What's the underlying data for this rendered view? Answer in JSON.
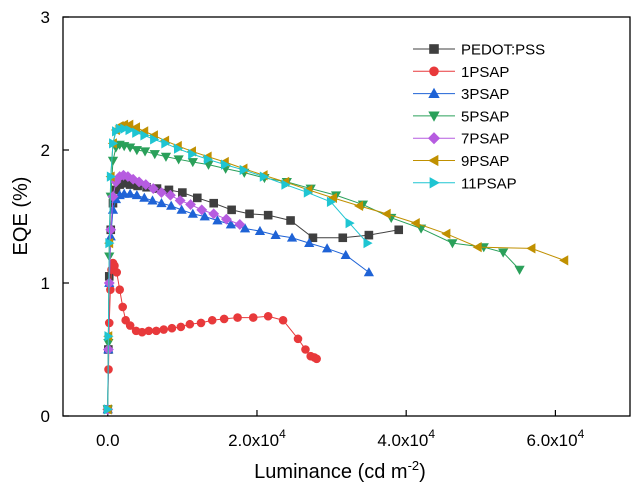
{
  "chart_data": {
    "type": "line",
    "xlabel": "Luminance (cd m",
    "xlabel_sup": "-2",
    "xlabel_close": ")",
    "ylabel": "EQE (%)",
    "xlim": [
      -6000,
      70000
    ],
    "ylim": [
      0,
      3
    ],
    "grid": false,
    "legend_position": "top-right",
    "x_ticks": [
      {
        "value": 0,
        "mantissa": "0.0",
        "exp": ""
      },
      {
        "value": 20000,
        "mantissa": "2.0x10",
        "exp": "4"
      },
      {
        "value": 40000,
        "mantissa": "4.0x10",
        "exp": "4"
      },
      {
        "value": 60000,
        "mantissa": "6.0x10",
        "exp": "4"
      }
    ],
    "y_ticks": [
      {
        "value": 0,
        "label": "0"
      },
      {
        "value": 1,
        "label": "1"
      },
      {
        "value": 2,
        "label": "2"
      },
      {
        "value": 3,
        "label": "3"
      }
    ],
    "series": [
      {
        "name": "PEDOT:PSS",
        "color": "#3f3f3f",
        "marker": "square",
        "x": [
          0,
          80,
          200,
          400,
          700,
          1100,
          1600,
          2200,
          3000,
          4000,
          5200,
          6600,
          8200,
          10000,
          12000,
          14200,
          16600,
          19000,
          21500,
          24500,
          27500,
          31500,
          35000,
          39000
        ],
        "y": [
          0.05,
          0.5,
          1.05,
          1.4,
          1.6,
          1.7,
          1.74,
          1.75,
          1.74,
          1.73,
          1.72,
          1.71,
          1.7,
          1.68,
          1.64,
          1.6,
          1.55,
          1.52,
          1.51,
          1.47,
          1.34,
          1.34,
          1.36,
          1.4
        ]
      },
      {
        "name": "1PSAP",
        "color": "#e8393b",
        "marker": "circle",
        "x": [
          0,
          100,
          200,
          350,
          500,
          700,
          900,
          1200,
          1600,
          2000,
          2400,
          3000,
          3800,
          4600,
          5500,
          6500,
          7500,
          8600,
          9800,
          11000,
          12500,
          14000,
          15600,
          17400,
          19500,
          21500,
          23500,
          25500,
          26500,
          27200,
          27700,
          28000
        ],
        "y": [
          0.05,
          0.35,
          0.7,
          0.95,
          1.1,
          1.15,
          1.13,
          1.08,
          0.95,
          0.82,
          0.72,
          0.68,
          0.64,
          0.63,
          0.64,
          0.64,
          0.65,
          0.66,
          0.67,
          0.69,
          0.7,
          0.72,
          0.73,
          0.74,
          0.74,
          0.75,
          0.72,
          0.58,
          0.5,
          0.45,
          0.44,
          0.43
        ]
      },
      {
        "name": "3PSAP",
        "color": "#1f63d6",
        "marker": "triangle-up",
        "x": [
          0,
          80,
          200,
          400,
          700,
          1100,
          1600,
          2200,
          3000,
          3900,
          4900,
          6000,
          7200,
          8500,
          9900,
          11400,
          13000,
          14700,
          16500,
          18400,
          20400,
          22500,
          24700,
          27000,
          29400,
          31900,
          35000
        ],
        "y": [
          0.05,
          0.5,
          1.0,
          1.35,
          1.55,
          1.63,
          1.66,
          1.67,
          1.67,
          1.66,
          1.64,
          1.62,
          1.6,
          1.58,
          1.55,
          1.52,
          1.5,
          1.47,
          1.44,
          1.41,
          1.39,
          1.36,
          1.34,
          1.3,
          1.26,
          1.21,
          1.08
        ]
      },
      {
        "name": "5PSAP",
        "color": "#2aa05a",
        "marker": "triangle-down",
        "x": [
          0,
          80,
          200,
          400,
          700,
          1100,
          1600,
          2200,
          3000,
          3900,
          5000,
          6300,
          7800,
          9500,
          11400,
          13500,
          15800,
          18300,
          21000,
          24000,
          27200,
          30600,
          34200,
          38000,
          42000,
          46200,
          50400,
          53000,
          55200
        ],
        "y": [
          0.05,
          0.55,
          1.2,
          1.65,
          1.92,
          2.02,
          2.04,
          2.03,
          2.02,
          2.0,
          1.99,
          1.97,
          1.95,
          1.93,
          1.91,
          1.89,
          1.86,
          1.83,
          1.79,
          1.76,
          1.71,
          1.66,
          1.59,
          1.49,
          1.41,
          1.3,
          1.27,
          1.23,
          1.1
        ]
      },
      {
        "name": "7PSAP",
        "color": "#b65ce0",
        "marker": "diamond",
        "x": [
          0,
          80,
          200,
          400,
          700,
          1100,
          1600,
          2100,
          2700,
          3400,
          4200,
          5100,
          6100,
          7200,
          8400,
          9700,
          11100,
          12600,
          14200,
          15900,
          17700
        ],
        "y": [
          0.05,
          0.5,
          1.0,
          1.4,
          1.65,
          1.76,
          1.8,
          1.81,
          1.8,
          1.78,
          1.76,
          1.74,
          1.71,
          1.68,
          1.66,
          1.62,
          1.59,
          1.55,
          1.52,
          1.48,
          1.44
        ]
      },
      {
        "name": "9PSAP",
        "color": "#c09000",
        "marker": "triangle-left",
        "x": [
          0,
          80,
          200,
          400,
          700,
          1100,
          1600,
          2200,
          2900,
          3800,
          4900,
          6200,
          7700,
          9400,
          11300,
          13400,
          15700,
          18200,
          20900,
          23800,
          26900,
          30200,
          33700,
          37400,
          41300,
          45400,
          49600,
          56800,
          61200
        ],
        "y": [
          0.05,
          0.6,
          1.3,
          1.8,
          2.05,
          2.15,
          2.18,
          2.19,
          2.19,
          2.17,
          2.14,
          2.11,
          2.07,
          2.03,
          1.99,
          1.95,
          1.91,
          1.86,
          1.81,
          1.76,
          1.7,
          1.64,
          1.58,
          1.52,
          1.45,
          1.37,
          1.27,
          1.26,
          1.17
        ]
      },
      {
        "name": "11PSAP",
        "color": "#1fc5d2",
        "marker": "triangle-right",
        "x": [
          0,
          80,
          200,
          400,
          700,
          1100,
          1600,
          2200,
          2900,
          3800,
          4900,
          6200,
          7700,
          9400,
          11300,
          13400,
          15700,
          18200,
          20900,
          23800,
          26800,
          29900,
          32400,
          34800
        ],
        "y": [
          0.05,
          0.6,
          1.3,
          1.8,
          2.05,
          2.14,
          2.16,
          2.16,
          2.15,
          2.13,
          2.11,
          2.08,
          2.05,
          2.01,
          1.97,
          1.93,
          1.89,
          1.85,
          1.8,
          1.74,
          1.68,
          1.61,
          1.45,
          1.3
        ]
      }
    ]
  }
}
